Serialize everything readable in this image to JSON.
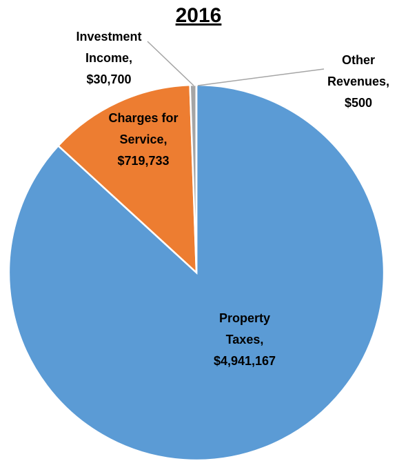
{
  "chart_data": {
    "type": "pie",
    "title": "2016",
    "categories": [
      "Property Taxes",
      "Charges for Service",
      "Investment Income",
      "Other Revenues"
    ],
    "label_separator": ",",
    "values": [
      4941167,
      719733,
      30700,
      500
    ],
    "value_labels": [
      "$4,941,167",
      "$719,733",
      "$30,700",
      "$500"
    ],
    "colors": [
      "#5b9bd5",
      "#ed7d31",
      "#a5a5a5",
      "#bfbfbf"
    ]
  }
}
